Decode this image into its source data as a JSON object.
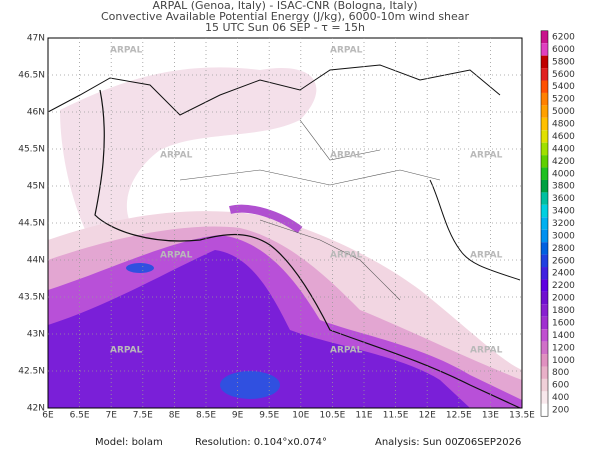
{
  "header": {
    "lines": [
      "ARPAL (Genoa, Italy)  -  ISAC-CNR (Bologna, Italy)",
      "Convective Available Potential Energy (J/kg), 6000-10m wind shear",
      "15 UTC Sun 06 SEP  -  τ = 15h"
    ]
  },
  "map": {
    "lat_labels": [
      "47N",
      "46.5N",
      "46N",
      "45.5N",
      "45N",
      "44.5N",
      "44N",
      "43.5N",
      "43N",
      "42.5N",
      "42N"
    ],
    "lon_labels": [
      "6E",
      "6.5E",
      "7E",
      "7.5E",
      "8E",
      "8.5E",
      "9E",
      "9.5E",
      "10E",
      "10.5E",
      "11E",
      "11.5E",
      "12E",
      "12.5E",
      "13E",
      "13.5E"
    ],
    "watermark": "ARPAL"
  },
  "colorbar": {
    "levels": [
      6200,
      6000,
      5800,
      5600,
      5400,
      5200,
      5000,
      4800,
      4600,
      4400,
      4200,
      4000,
      3800,
      3600,
      3400,
      3200,
      3000,
      2800,
      2600,
      2400,
      2200,
      2000,
      1800,
      1600,
      1400,
      1200,
      1000,
      800,
      600,
      400,
      200
    ],
    "colors": [
      "#c8148c",
      "#e040c0",
      "#c00000",
      "#e02020",
      "#ff5000",
      "#ff8000",
      "#ffa000",
      "#ffc000",
      "#e0e000",
      "#a0e000",
      "#60d000",
      "#20c020",
      "#00a040",
      "#00c0a0",
      "#00d0e0",
      "#00b0f0",
      "#0090f0",
      "#0060e0",
      "#2040e0",
      "#4020e0",
      "#6000e0",
      "#7010d0",
      "#8820d0",
      "#a030d0",
      "#c050d0",
      "#d070c8",
      "#e090c0",
      "#e8b0c8",
      "#f0d0d8",
      "#f8e8ec",
      "#ffffff"
    ]
  },
  "footer": {
    "model": "Model: bolam",
    "resolution": "Resolution: 0.104°x0.074°",
    "analysis": "Analysis: Sun 00Z06SEP2026"
  }
}
